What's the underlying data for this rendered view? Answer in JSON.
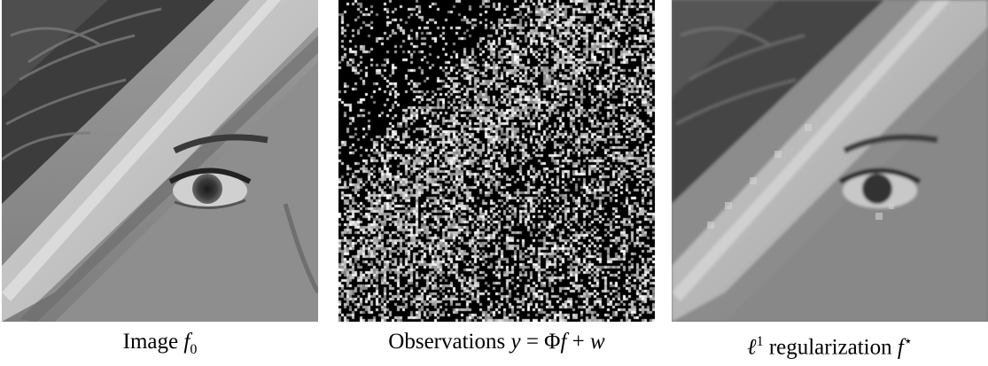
{
  "panels": [
    {
      "label": "Image",
      "symbol": "f",
      "subscript": "0"
    },
    {
      "label": "Observations",
      "equation_lhs": "y",
      "equation_eq": " = ",
      "equation_phi": "Φ",
      "equation_f": "f",
      "equation_plus": " + ",
      "equation_w": "w"
    },
    {
      "prefix": "ℓ",
      "prefix_sup": "1",
      "label": " regularization ",
      "symbol": "f",
      "symbol_sup": "⋆"
    }
  ]
}
